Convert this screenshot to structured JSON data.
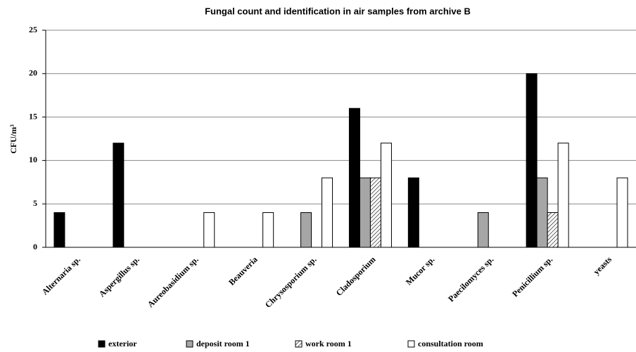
{
  "chart_data": {
    "type": "bar",
    "title": "Fungal count and identification in air samples from archive B",
    "y_label": "CFU/m³",
    "categories": [
      "Alternaria sp.",
      "Aspergillus  sp.",
      "Aureobasidium sp.",
      "Beauveria",
      "Chrysosporium sp.",
      "Cladosporium",
      "Mucor sp.",
      "Paecilomyces sp.",
      "Penicillium  sp.",
      "yeasts"
    ],
    "series": [
      {
        "name": "exterior",
        "color": "#000000",
        "values": [
          4,
          12,
          0,
          0,
          0,
          16,
          8,
          0,
          20,
          0
        ]
      },
      {
        "name": "deposit room 1",
        "color": "#a6a6a6",
        "values": [
          0,
          0,
          0,
          0,
          4,
          8,
          0,
          4,
          8,
          0
        ]
      },
      {
        "name": "work room 1",
        "color": "#ffffff",
        "hatch": true,
        "values": [
          0,
          0,
          0,
          0,
          0,
          8,
          0,
          0,
          4,
          0
        ]
      },
      {
        "name": "consultation room",
        "color": "#ffffff",
        "values": [
          0,
          0,
          4,
          4,
          8,
          12,
          0,
          0,
          12,
          8
        ]
      }
    ],
    "ylim": [
      0,
      25
    ],
    "yticks": [
      0,
      5,
      10,
      15,
      20,
      25
    ],
    "grid": true
  }
}
